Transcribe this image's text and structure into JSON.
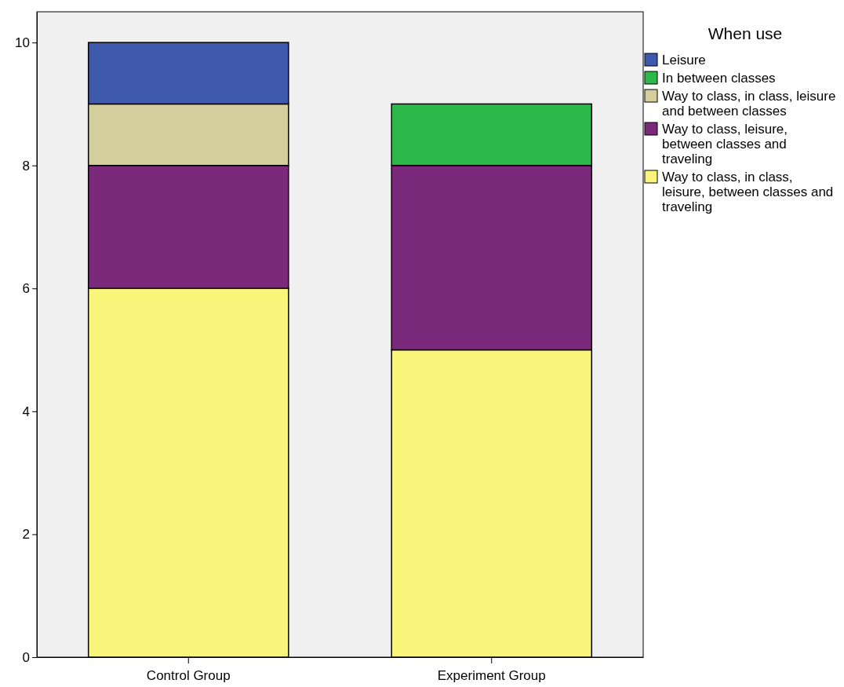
{
  "chart_data": {
    "type": "bar",
    "stacked": true,
    "categories": [
      "Control Group",
      "Experiment Group"
    ],
    "legend_title": "When use",
    "legend": "right",
    "grid": false,
    "ylim": [
      0,
      10.5
    ],
    "yticks": [
      0,
      2,
      4,
      6,
      8,
      10
    ],
    "series": [
      {
        "name": "Way to class, in class, leisure, between classes and traveling",
        "color": "#f9f57a",
        "values": [
          6,
          5
        ]
      },
      {
        "name": "Way to class, leisure, between classes and traveling",
        "color": "#7b2a7b",
        "values": [
          2,
          3
        ]
      },
      {
        "name": "Way to class, in class, leisure and between classes",
        "color": "#d3ce9c",
        "values": [
          1,
          0
        ]
      },
      {
        "name": "In between classes",
        "color": "#2db84a",
        "values": [
          0,
          1
        ]
      },
      {
        "name": "Leisure",
        "color": "#3f5aad",
        "values": [
          1,
          0
        ]
      }
    ]
  }
}
